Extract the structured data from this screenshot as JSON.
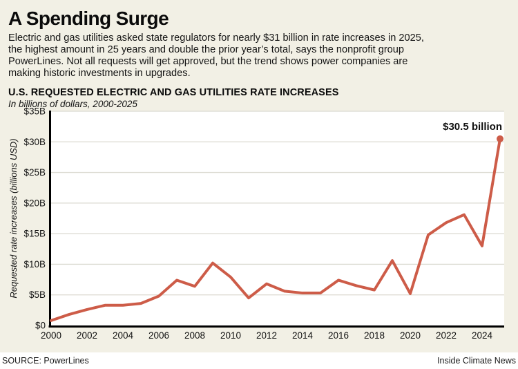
{
  "header": {
    "title": "A Spending Surge",
    "description_lines": [
      "Electric and gas utilities asked state regulators for nearly $31 billion in rate increases in 2025,",
      "the highest amount in 25 years and double the prior year’s total, says the nonprofit group",
      "PowerLines. Not all requests will get approved, but the trend shows power companies are",
      "making historic investments in upgrades."
    ]
  },
  "chart_header": {
    "title": "U.S. REQUESTED ELECTRIC AND GAS UTILITIES RATE INCREASES",
    "subtitle": "In billions of dollars, 2000-2025"
  },
  "chart_data": {
    "type": "line",
    "title": "U.S. REQUESTED ELECTRIC AND GAS UTILITIES RATE INCREASES",
    "subtitle": "In billions of dollars, 2000-2025",
    "xlabel": "",
    "ylabel": "Requested rate increases (billions USD)",
    "x": [
      2000,
      2001,
      2002,
      2003,
      2004,
      2005,
      2006,
      2007,
      2008,
      2009,
      2010,
      2011,
      2012,
      2013,
      2014,
      2015,
      2016,
      2017,
      2018,
      2019,
      2020,
      2021,
      2022,
      2023,
      2024,
      2025
    ],
    "values": [
      0.8,
      1.8,
      2.6,
      3.3,
      3.3,
      3.6,
      4.8,
      7.4,
      6.4,
      10.2,
      7.9,
      4.5,
      6.8,
      5.6,
      5.3,
      5.3,
      7.4,
      6.5,
      5.8,
      10.6,
      5.2,
      14.8,
      16.8,
      18.1,
      13.0,
      30.5
    ],
    "ylim": [
      0,
      35
    ],
    "y_tick_step": 5,
    "y_tick_labels": [
      "$0",
      "$5B",
      "$10B",
      "$15B",
      "$20B",
      "$25B",
      "$30B",
      "$35B"
    ],
    "x_ticks": [
      2000,
      2002,
      2004,
      2006,
      2008,
      2010,
      2012,
      2014,
      2016,
      2018,
      2020,
      2022,
      2024
    ],
    "grid": true,
    "legend_position": "none",
    "annotation": {
      "text": "$30.5 billion",
      "x": 2025,
      "y": 30.5
    },
    "line_color": "#cd5c48",
    "marker_color": "#cd5c48"
  },
  "footer": {
    "source": "SOURCE: PowerLines",
    "credit": "Inside Climate News"
  },
  "colors": {
    "background": "#f2f0e5",
    "plot_background": "#ffffff",
    "grid": "#dbdad1",
    "axis": "#000000",
    "footer_background": "#ffffff",
    "accent_line": "#cd5c48"
  }
}
